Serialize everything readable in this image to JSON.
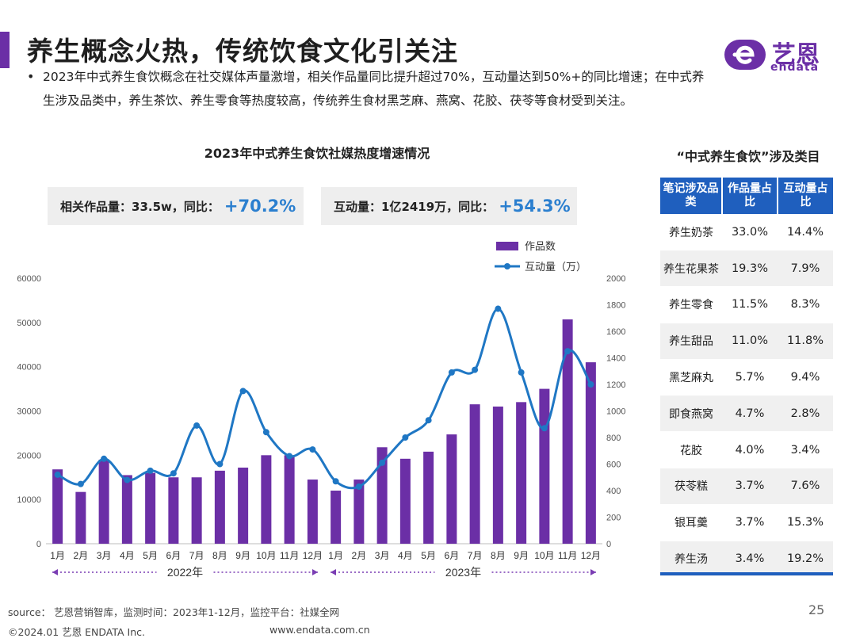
{
  "header": {
    "title": "养生概念火热，传统饮食文化引关注",
    "logo_cn": "艺恩",
    "logo_en": "endata"
  },
  "summary": {
    "bullet": "•",
    "text": "2023年中式养生食饮概念在社交媒体声量激增，相关作品量同比提升超过70%，互动量达到50%+的同比增速；在中式养生涉及品类中，养生茶饮、养生零食等热度较高，传统养生食材黑芝麻、燕窝、花胶、茯苓等食材受到关注。"
  },
  "stats": [
    {
      "label": "相关作品量：33.5w，同比：",
      "value": "+70.2%"
    },
    {
      "label": "互动量：1亿2419万，同比：",
      "value": "+54.3%"
    }
  ],
  "colors": {
    "accent": "#6b2fa6",
    "bar": "#6b2fa6",
    "line": "#1f77c4",
    "value": "#2b7fcf",
    "table_header": "#1f5fbe"
  },
  "chart_data": {
    "type": "bar+line",
    "title": "2023年中式养生食饮社媒热度增速情况",
    "categories": [
      "1月",
      "2月",
      "3月",
      "4月",
      "5月",
      "6月",
      "7月",
      "8月",
      "9月",
      "10月",
      "11月",
      "12月",
      "1月",
      "2月",
      "3月",
      "4月",
      "5月",
      "6月",
      "7月",
      "8月",
      "9月",
      "10月",
      "11月",
      "12月"
    ],
    "year_groups": [
      {
        "label": "2022年",
        "from": 0,
        "to": 11
      },
      {
        "label": "2023年",
        "from": 12,
        "to": 23
      }
    ],
    "series": [
      {
        "name": "作品数",
        "type": "bar",
        "axis": "left",
        "values": [
          16800,
          11700,
          19000,
          15500,
          16000,
          15000,
          15000,
          16500,
          17200,
          20000,
          20000,
          14500,
          12000,
          14500,
          21800,
          19200,
          20800,
          24700,
          31500,
          31000,
          32000,
          35000,
          50700,
          41000
        ]
      },
      {
        "name": "互动量（万）",
        "type": "line",
        "axis": "right",
        "values": [
          520,
          450,
          640,
          480,
          550,
          530,
          890,
          600,
          1150,
          840,
          660,
          710,
          470,
          430,
          610,
          800,
          930,
          1290,
          1310,
          1770,
          1290,
          870,
          1450,
          1200
        ]
      }
    ],
    "y_left": {
      "min": 0,
      "max": 60000,
      "ticks": [
        0,
        10000,
        20000,
        30000,
        40000,
        50000,
        60000
      ]
    },
    "y_right": {
      "min": 0,
      "max": 2000,
      "ticks": [
        0,
        200,
        400,
        600,
        800,
        1000,
        1200,
        1400,
        1600,
        1800,
        2000
      ]
    },
    "legend_position": "top-right"
  },
  "table": {
    "title": "“中式养生食饮”涉及类目",
    "headers": [
      "笔记涉及品类",
      "作品量占比",
      "互动量占比"
    ],
    "rows": [
      [
        "养生奶茶",
        "33.0%",
        "14.4%"
      ],
      [
        "养生花果茶",
        "19.3%",
        "7.9%"
      ],
      [
        "养生零食",
        "11.5%",
        "8.3%"
      ],
      [
        "养生甜品",
        "11.0%",
        "11.8%"
      ],
      [
        "黑芝麻丸",
        "5.7%",
        "9.4%"
      ],
      [
        "即食燕窝",
        "4.7%",
        "2.8%"
      ],
      [
        "花胶",
        "4.0%",
        "3.4%"
      ],
      [
        "茯苓糕",
        "3.7%",
        "7.6%"
      ],
      [
        "银耳羹",
        "3.7%",
        "15.3%"
      ],
      [
        "养生汤",
        "3.4%",
        "19.2%"
      ]
    ]
  },
  "footer": {
    "source": "source： 艺恩营销智库，监测时间：2023年1-12月，监控平台：社媒全网",
    "copyright": "©2024.01  艺恩 ENDATA Inc.",
    "website": "www.endata.com.cn",
    "page_number": "25"
  }
}
